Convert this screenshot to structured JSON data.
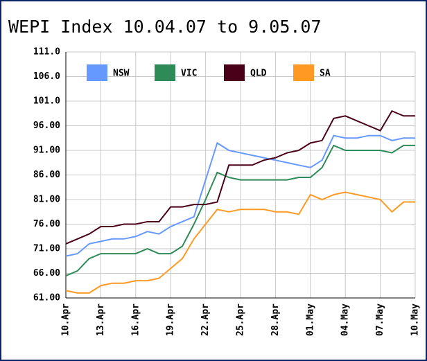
{
  "chart_data": {
    "type": "line",
    "title": "WEPI Index 10.04.07 to 9.05.07",
    "categories": [
      "10.Apr",
      null,
      null,
      "13.Apr",
      null,
      null,
      "16.Apr",
      null,
      null,
      "19.Apr",
      null,
      null,
      "22.Apr",
      null,
      null,
      "25.Apr",
      null,
      null,
      "28.Apr",
      null,
      null,
      "01.May",
      null,
      null,
      "04.May",
      null,
      null,
      "07.May",
      null,
      null,
      "10.May"
    ],
    "series": [
      {
        "name": "NSW",
        "color": "#6699ff",
        "values": [
          69.5,
          70,
          72,
          72.5,
          73,
          73,
          73.5,
          74.5,
          74,
          75.5,
          76.5,
          77.5,
          85,
          92.5,
          91,
          90.5,
          90,
          89.5,
          89,
          88.5,
          88,
          87.5,
          89,
          94,
          93.5,
          93.5,
          94,
          94,
          93,
          93.5,
          93.5
        ]
      },
      {
        "name": "VIC",
        "color": "#2e8b57",
        "values": [
          65.5,
          66.5,
          69,
          70,
          70,
          70,
          70,
          71,
          70,
          70,
          71.5,
          76,
          81,
          86.5,
          85.5,
          85,
          85,
          85,
          85,
          85,
          85.5,
          85.5,
          87.5,
          92,
          91,
          91,
          91,
          91,
          90.5,
          92,
          92
        ]
      },
      {
        "name": "QLD",
        "color": "#4b0019",
        "values": [
          72,
          73,
          74,
          75.5,
          75.5,
          76,
          76,
          76.5,
          76.5,
          79.5,
          79.5,
          80,
          80,
          80.5,
          88,
          88,
          88,
          89,
          89.5,
          90.5,
          91,
          92.5,
          93,
          97.5,
          98,
          97,
          96,
          95,
          99,
          98,
          98
        ]
      },
      {
        "name": "SA",
        "color": "#ff9922",
        "values": [
          62.5,
          62,
          62,
          63.5,
          64,
          64,
          64.5,
          64.5,
          65,
          67,
          69,
          73,
          76,
          79,
          78.5,
          79,
          79,
          79,
          78.5,
          78.5,
          78,
          82,
          81,
          82,
          82.5,
          82,
          81.5,
          81,
          78.5,
          80.5,
          80.5
        ]
      }
    ],
    "ylim": [
      61,
      111
    ],
    "yticks": [
      {
        "value": 61,
        "label": "61.00"
      },
      {
        "value": 66,
        "label": "66.00"
      },
      {
        "value": 71,
        "label": "71.00"
      },
      {
        "value": 76,
        "label": "76.00"
      },
      {
        "value": 81,
        "label": "81.00"
      },
      {
        "value": 86,
        "label": "86.00"
      },
      {
        "value": 91,
        "label": "91.00"
      },
      {
        "value": 96,
        "label": "96.00"
      },
      {
        "value": 101,
        "label": "101.0"
      },
      {
        "value": 106,
        "label": "106.0"
      },
      {
        "value": 111,
        "label": "111.0"
      }
    ],
    "grid": true
  }
}
